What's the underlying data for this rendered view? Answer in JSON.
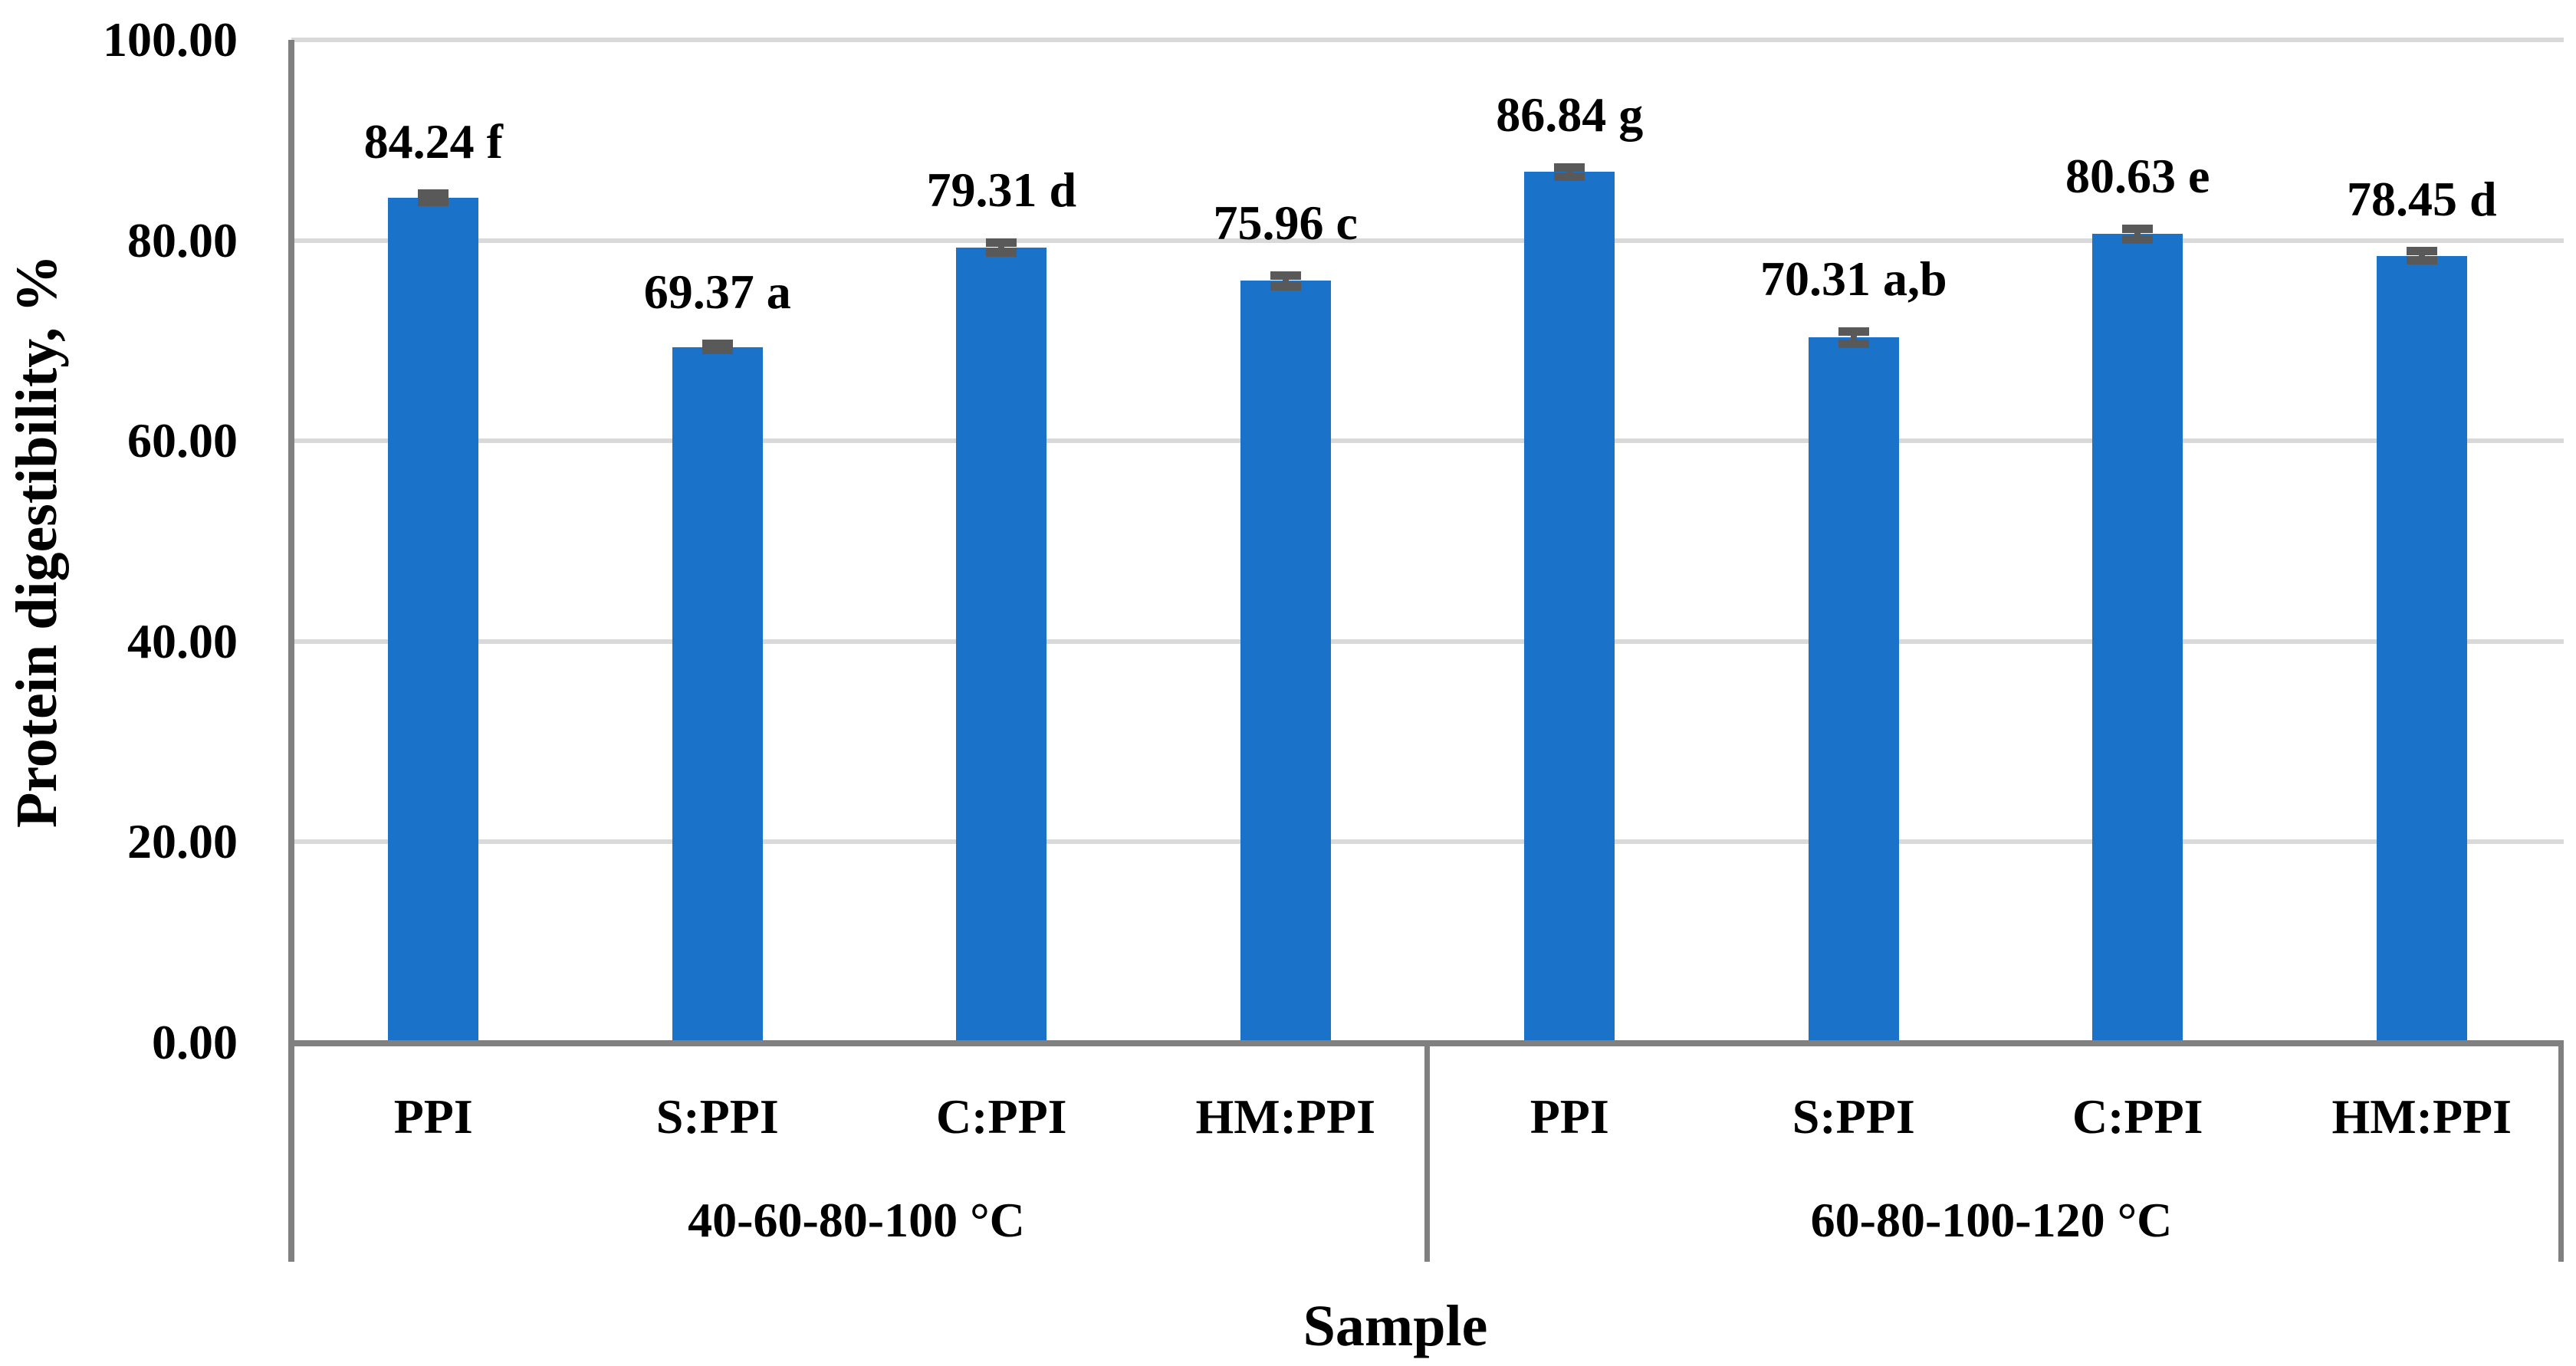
{
  "chart_data": {
    "type": "bar",
    "title": "",
    "ylabel": "Protein digestibility, %",
    "xlabel": "Sample",
    "ylim": [
      0,
      100
    ],
    "yticks": [
      0,
      20,
      40,
      60,
      80,
      100
    ],
    "ytick_labels": [
      "0.00",
      "20.00",
      "40.00",
      "60.00",
      "80.00",
      "100.00"
    ],
    "grid": true,
    "legend_position": "none",
    "colors": {
      "bar": "#1B73C9",
      "error_bar": "#595959",
      "axis_line": "#808080",
      "gridline": "#D9D9D9",
      "text": "#000000",
      "background": "#FFFFFF"
    },
    "groups": [
      {
        "label": "40-60-80-100 °C",
        "bars": [
          {
            "category": "PPI",
            "value": 84.24,
            "error": 0.4,
            "annotation": "84.24 f"
          },
          {
            "category": "S:PPI",
            "value": 69.37,
            "error": 0.3,
            "annotation": "69.37 a"
          },
          {
            "category": "C:PPI",
            "value": 79.31,
            "error": 0.5,
            "annotation": "79.31 d"
          },
          {
            "category": "HM:PPI",
            "value": 75.96,
            "error": 0.55,
            "annotation": "75.96 c"
          }
        ]
      },
      {
        "label": "60-80-100-120 °C",
        "bars": [
          {
            "category": "PPI",
            "value": 86.84,
            "error": 0.45,
            "annotation": "86.84 g"
          },
          {
            "category": "S:PPI",
            "value": 70.31,
            "error": 0.6,
            "annotation": "70.31 a,b"
          },
          {
            "category": "C:PPI",
            "value": 80.63,
            "error": 0.55,
            "annotation": "80.63 e"
          },
          {
            "category": "HM:PPI",
            "value": 78.45,
            "error": 0.45,
            "annotation": "78.45 d"
          }
        ]
      }
    ]
  }
}
